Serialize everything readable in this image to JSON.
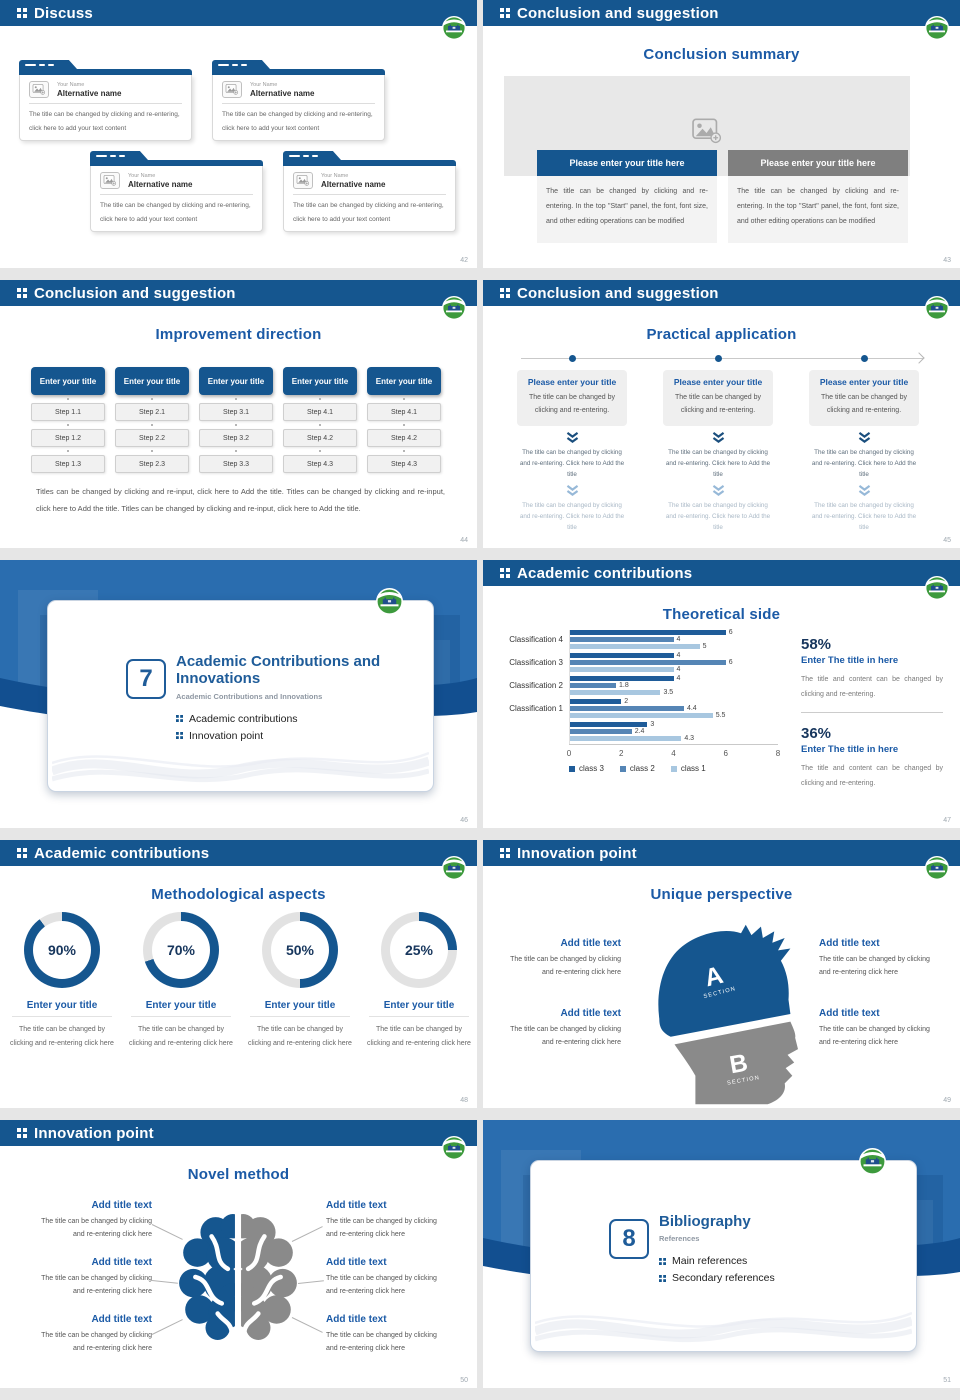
{
  "colors": {
    "primary_blue": "#15568F",
    "title_blue": "#1B5AA6",
    "dark_navy": "#17365D",
    "bar_dark": "#1F5C99",
    "bar_medium": "#5585B5",
    "bar_light": "#A8C7E0",
    "gray": "#7F7F7F",
    "panel_gray": "#F3F3F3",
    "logo_green": "#3D9A3D"
  },
  "slides": {
    "discuss": {
      "header": "Discuss",
      "page": "42",
      "cards": [
        {
          "person_label": "Your Name",
          "title": "Alternative name",
          "body": "The title can be changed by clicking and re-entering, click here to add your text content"
        },
        {
          "person_label": "Your Name",
          "title": "Alternative name",
          "body": "The title can be changed by clicking and re-entering, click here to add your text content"
        },
        {
          "person_label": "Your Name",
          "title": "Alternative name",
          "body": "The title can be changed by clicking and re-entering, click here to add your text content"
        },
        {
          "person_label": "Your Name",
          "title": "Alternative name",
          "body": "The title can be changed by clicking and re-entering, click here to add your text content"
        }
      ]
    },
    "conclusion_summary": {
      "header": "Conclusion and suggestion",
      "page": "43",
      "title": "Conclusion summary",
      "buttons": [
        {
          "label": "Please enter your title here"
        },
        {
          "label": "Please enter your title here"
        }
      ],
      "panels": [
        "The title can be changed by clicking and re-entering. In the top \"Start\" panel, the font, font size, and other editing operations can be modified",
        "The title can be changed by clicking and re-entering. In the top \"Start\" panel, the font, font size, and other editing operations can be modified"
      ]
    },
    "improvement_direction": {
      "header": "Conclusion and suggestion",
      "page": "44",
      "title": "Improvement direction",
      "columns": [
        {
          "title": "Enter your title",
          "steps": [
            "Step 1.1",
            "Step 1.2",
            "Step 1.3"
          ]
        },
        {
          "title": "Enter your title",
          "steps": [
            "Step 2.1",
            "Step 2.2",
            "Step 2.3"
          ]
        },
        {
          "title": "Enter your title",
          "steps": [
            "Step 3.1",
            "Step 3.2",
            "Step 3.3"
          ]
        },
        {
          "title": "Enter your title",
          "steps": [
            "Step 4.1",
            "Step 4.2",
            "Step 4.3"
          ]
        },
        {
          "title": "Enter your title",
          "steps": [
            "Step 4.1",
            "Step 4.2",
            "Step 4.3"
          ]
        }
      ],
      "footer": "Titles can be changed by clicking and re-input, click here to Add the title. Titles can be changed by clicking and re-input, click here to Add the title. Titles can be changed by clicking and re-input, click here to Add the title."
    },
    "practical_application": {
      "header": "Conclusion and suggestion",
      "page": "45",
      "title": "Practical application",
      "columns": [
        {
          "title": "Please enter your title",
          "card_body": "The title can be changed by clicking and re-entering.",
          "step1": "The title can be changed by clicking and re-entering. Click here to Add the title",
          "step2": "The title can be changed by clicking and re-entering. Click here to Add the title"
        },
        {
          "title": "Please enter your title",
          "card_body": "The title can be changed by clicking and re-entering.",
          "step1": "The title can be changed by clicking and re-entering. Click here to Add the title",
          "step2": "The title can be changed by clicking and re-entering. Click here to Add the title"
        },
        {
          "title": "Please enter your title",
          "card_body": "The title can be changed by clicking and re-entering.",
          "step1": "The title can be changed by clicking and re-entering. Click here to Add the title",
          "step2": "The title can be changed by clicking and re-entering. Click here to Add the title"
        }
      ]
    },
    "section_7": {
      "page": "46",
      "number": "7",
      "title": "Academic Contributions and Innovations",
      "subtitle": "Academic Contributions and Innovations",
      "bullets": [
        "Academic contributions",
        "Innovation point"
      ]
    },
    "theoretical_side": {
      "header": "Academic contributions",
      "page": "47",
      "title": "Theoretical side",
      "chart_data": {
        "type": "bar",
        "orientation": "horizontal",
        "title": "Theoretical side",
        "categories": [
          "Classification 4",
          "Classification 3",
          "Classification 2",
          "Classification 1",
          ""
        ],
        "series": [
          {
            "name": "class 3",
            "color": "#1F5C99",
            "values": [
              6,
              4,
              4,
              2,
              3
            ]
          },
          {
            "name": "class 2",
            "color": "#5585B5",
            "values": [
              4,
              6,
              1.8,
              4.4,
              2.4
            ]
          },
          {
            "name": "class 1",
            "color": "#A8C7E0",
            "values": [
              5,
              4,
              3.5,
              5.5,
              4.3
            ]
          }
        ],
        "xlim": [
          0,
          8
        ],
        "xticks": [
          0,
          2,
          4,
          6,
          8
        ],
        "grid": false,
        "legend_position": "bottom"
      },
      "stats": [
        {
          "pct": "58%",
          "title": "Enter The title in here",
          "body": "The title and content can be changed by clicking and re-entering."
        },
        {
          "pct": "36%",
          "title": "Enter The title in here",
          "body": "The title and content can be changed by clicking and re-entering."
        }
      ]
    },
    "methodological_aspects": {
      "header": "Academic contributions",
      "page": "48",
      "title": "Methodological aspects",
      "donuts": [
        {
          "value": 90,
          "label": "90%",
          "title": "Enter your title",
          "body": "The title can be changed by clicking and re-entering click here"
        },
        {
          "value": 70,
          "label": "70%",
          "title": "Enter your title",
          "body": "The title can be changed by clicking and re-entering click here"
        },
        {
          "value": 50,
          "label": "50%",
          "title": "Enter your title",
          "body": "The title can be changed by clicking and re-entering click here"
        },
        {
          "value": 25,
          "label": "25%",
          "title": "Enter your title",
          "body": "The title can be changed by clicking and re-entering click here"
        }
      ]
    },
    "unique_perspective": {
      "header": "Innovation point",
      "page": "49",
      "title": "Unique perspective",
      "sections": [
        {
          "letter": "A",
          "word": "SECTION"
        },
        {
          "letter": "B",
          "word": "SECTION"
        }
      ],
      "left_labels": [
        {
          "title": "Add title text",
          "body": "The title can be changed by clicking and re-entering click here"
        },
        {
          "title": "Add title text",
          "body": "The title can be changed by clicking and re-entering click here"
        }
      ],
      "right_labels": [
        {
          "title": "Add title text",
          "body": "The title can be changed by clicking and re-entering click here"
        },
        {
          "title": "Add title text",
          "body": "The title can be changed by clicking and re-entering click here"
        }
      ]
    },
    "novel_method": {
      "header": "Innovation point",
      "page": "50",
      "title": "Novel method",
      "left_labels": [
        {
          "title": "Add title text",
          "body": "The title can be changed by clicking and re-entering click here"
        },
        {
          "title": "Add title text",
          "body": "The title can be changed by clicking and re-entering click here"
        },
        {
          "title": "Add title text",
          "body": "The title can be changed by clicking and re-entering click here"
        }
      ],
      "right_labels": [
        {
          "title": "Add title text",
          "body": "The title can be changed by clicking and re-entering click here"
        },
        {
          "title": "Add title text",
          "body": "The title can be changed by clicking and re-entering click here"
        },
        {
          "title": "Add title text",
          "body": "The title can be changed by clicking and re-entering click here"
        }
      ]
    },
    "section_8": {
      "page": "51",
      "number": "8",
      "title": "Bibliography",
      "subtitle": "References",
      "bullets": [
        "Main references",
        "Secondary references"
      ]
    }
  }
}
